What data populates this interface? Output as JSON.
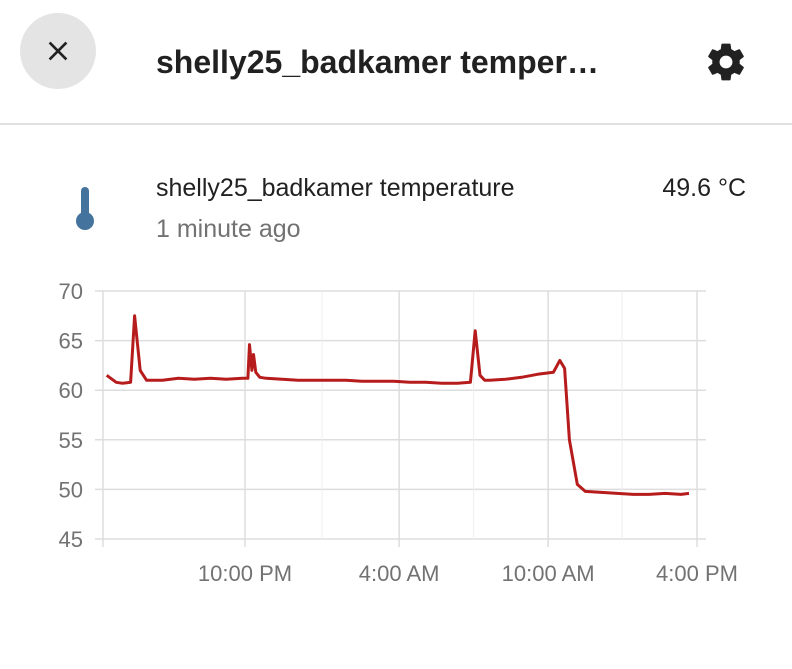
{
  "header": {
    "title": "shelly25_badkamer temper…",
    "close_icon": "close-icon",
    "settings_icon": "gear-icon"
  },
  "entity": {
    "icon": "thermometer-icon",
    "name": "shelly25_badkamer temperature",
    "last_changed": "1 minute ago",
    "state": "49.6 °C"
  },
  "colors": {
    "line": "#b71c1c",
    "grid": "#dddddd",
    "icon": "#44739e"
  },
  "chart_data": {
    "type": "line",
    "title": "",
    "xlabel": "",
    "ylabel": "",
    "ylim": [
      45,
      70
    ],
    "yticks": [
      "70",
      "65",
      "60",
      "55",
      "50",
      "45"
    ],
    "xticks": [
      "10:00 PM",
      "4:00 AM",
      "10:00 AM",
      "4:00 PM"
    ],
    "grid": true,
    "series": [
      {
        "values": [
          61.5,
          60.8,
          60.7,
          60.8,
          67.5,
          62.0,
          61.0,
          61.0,
          61.2,
          61.1,
          61.2,
          61.1,
          61.2,
          61.2,
          64.6,
          62.0,
          63.6,
          61.8,
          61.3,
          61.2,
          61.1,
          61.0,
          61.0,
          61.0,
          61.0,
          60.9,
          60.9,
          60.9,
          60.8,
          60.8,
          60.7,
          60.7,
          60.8,
          66.0,
          61.5,
          61.0,
          61.0,
          61.1,
          61.3,
          61.6,
          61.8,
          63.0,
          62.2,
          55.0,
          50.5,
          49.8,
          49.7,
          49.6,
          49.5,
          49.5,
          49.6,
          49.5,
          49.6
        ],
        "x_hours": [
          0,
          0.6,
          1.0,
          1.5,
          1.75,
          2.1,
          2.5,
          3.5,
          4.5,
          5.5,
          6.5,
          7.5,
          8.5,
          8.85,
          8.95,
          9.1,
          9.2,
          9.35,
          9.6,
          10,
          11,
          12,
          13,
          14,
          15,
          16,
          17,
          18,
          19,
          20,
          21,
          22,
          22.8,
          23.1,
          23.4,
          23.7,
          24,
          25,
          26,
          27,
          28,
          28.4,
          28.7,
          29.0,
          29.5,
          30,
          31,
          32,
          33,
          34,
          35,
          36,
          36.5
        ]
      }
    ],
    "x_range_hours": [
      0,
      36.5
    ],
    "x_tick_hours": [
      8.67,
      18.33,
      27.67,
      37.0
    ]
  }
}
